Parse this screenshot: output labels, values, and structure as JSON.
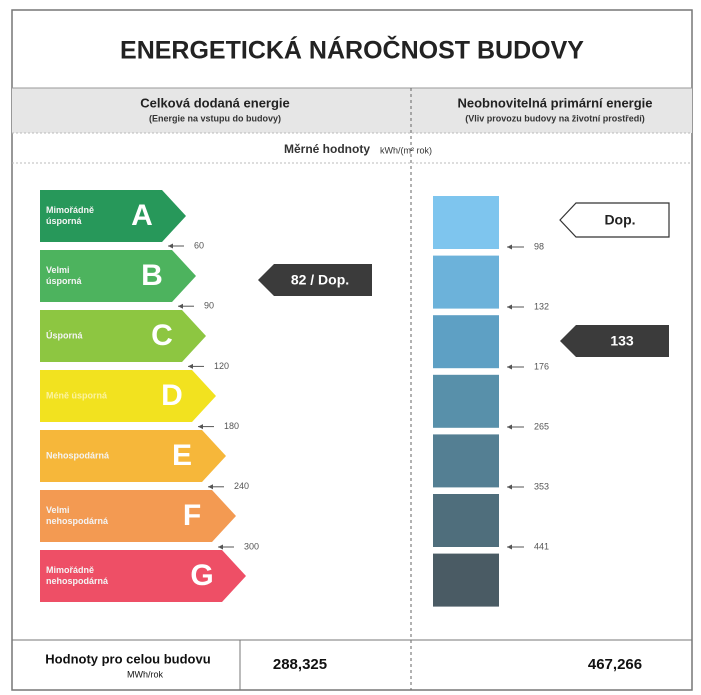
{
  "title": "ENERGETICKÁ NÁROČNOST BUDOVY",
  "left_header": {
    "title": "Celková dodaná energie",
    "subtitle": "(Energie na vstupu do budovy)"
  },
  "right_header": {
    "title": "Neobnovitelná primární energie",
    "subtitle": "(Vliv provozu budovy na životní prostředí)"
  },
  "specific": {
    "label": "Měrné hodnoty",
    "unit": "kWh/(m² rok)"
  },
  "classes": [
    {
      "letter": "A",
      "lines": [
        "Mimořádně",
        "úsporná"
      ],
      "color": "#27985a"
    },
    {
      "letter": "B",
      "lines": [
        "Velmi",
        "úsporná"
      ],
      "color": "#4db35e"
    },
    {
      "letter": "C",
      "lines": [
        "Úsporná"
      ],
      "color": "#8dc641"
    },
    {
      "letter": "D",
      "lines": [
        "Méně úsporná"
      ],
      "color": "#f2e21f"
    },
    {
      "letter": "E",
      "lines": [
        "Nehospodárná"
      ],
      "color": "#f6b73a"
    },
    {
      "letter": "F",
      "lines": [
        "Velmi",
        "nehospodárná"
      ],
      "color": "#f39a52"
    },
    {
      "letter": "G",
      "lines": [
        "Mimořádně",
        "nehospodárná"
      ],
      "color": "#ee4f66"
    }
  ],
  "left_thresholds": [
    "60",
    "90",
    "120",
    "180",
    "240",
    "300"
  ],
  "left_indicator": "82 / Dop.",
  "right_bars": [
    "#7ec5ee",
    "#6cb2da",
    "#5ea0c4",
    "#5890aa",
    "#547f93",
    "#4f6e7c",
    "#4a5b64"
  ],
  "right_thresholds": [
    "98",
    "132",
    "176",
    "265",
    "353",
    "441"
  ],
  "right_indicator_top": "Dop.",
  "right_indicator": "133",
  "footer": {
    "label": "Hodnoty pro celou budovu",
    "unit": "MWh/rok",
    "left_value": "288,325",
    "right_value": "467,266"
  }
}
